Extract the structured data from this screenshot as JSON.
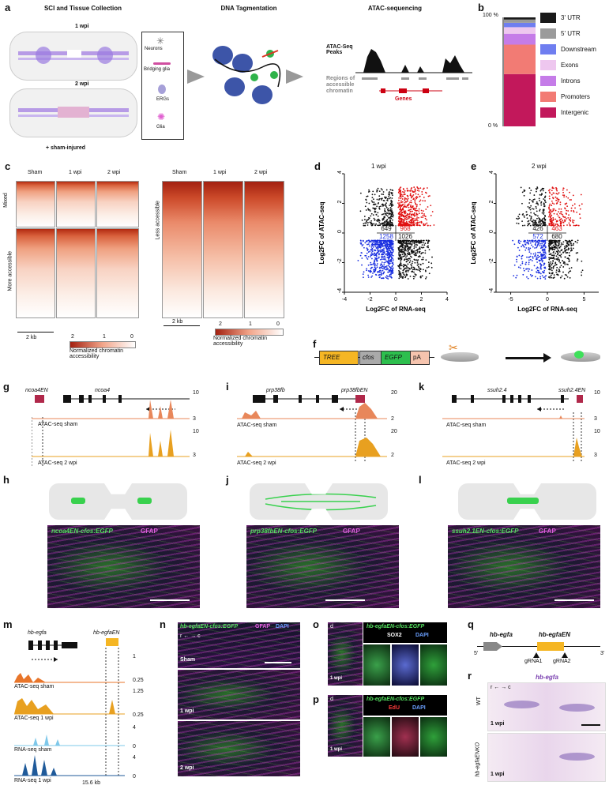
{
  "panels": {
    "a": {
      "label": "a",
      "title_sci": "SCI and Tissue Collection",
      "title_dna": "DNA Tagmentation",
      "title_atac": "ATAC-sequencing",
      "wpi1": "1 wpi",
      "wpi2": "2 wpi",
      "sham": "+ sham-injured",
      "legend": [
        "Neurons",
        "Bridging glia",
        "ERGs",
        "Glia"
      ],
      "atac_peaks": "ATAC-Seq Peaks",
      "regions": "Regions of accessible chromatin",
      "genes": "Genes"
    },
    "b": {
      "label": "b",
      "y_top": "100 %",
      "y_bottom": "0 %"
    },
    "c": {
      "label": "c",
      "cols": [
        "Sham",
        "1 wpi",
        "2 wpi"
      ],
      "row_mixed": "Mixed",
      "row_more": "More accessible",
      "row_less": "Less accessible",
      "scale": "2 kb",
      "cb_ticks": [
        "2",
        "1",
        "0"
      ],
      "cb_label": "Normalized chromatin accessibility"
    },
    "d": {
      "label": "d",
      "title": "1 wpi",
      "xlabel": "Log2FC of RNA-seq",
      "ylabel": "Log2FC of ATAC-seq",
      "counts": [
        "649",
        "968",
        "1258",
        "1026"
      ]
    },
    "e": {
      "label": "e",
      "title": "2 wpi",
      "xlabel": "Log2FC of RNA-seq",
      "ylabel": "Log2FC of ATAC-seq",
      "counts": [
        "426",
        "463",
        "572",
        "680"
      ]
    },
    "f": {
      "label": "f",
      "parts": [
        "TREE",
        "cfos",
        "EGFP",
        "pA"
      ]
    },
    "g": {
      "label": "g",
      "gene_en": "ncoa4EN",
      "gene": "ncoa4",
      "track1": "ATAC-seq sham",
      "track2": "ATAC-seq 2 wpi",
      "max1": "10",
      "min1": "3",
      "max2": "10",
      "min2": "3"
    },
    "i": {
      "label": "i",
      "gene_en": "prp38fbEN",
      "gene": "prp38fb",
      "track1": "ATAC-seq sham",
      "track2": "ATAC-seq 2 wpi",
      "max1": "20",
      "min1": "2",
      "max2": "20",
      "min2": "2"
    },
    "k": {
      "label": "k",
      "gene_en": "ssuh2.4EN",
      "gene": "ssuh2.4",
      "track1": "ATAC-seq sham",
      "track2": "ATAC-seq 2 wpi",
      "max1": "10",
      "min1": "3",
      "max2": "10",
      "min2": "3"
    },
    "h": {
      "label": "h",
      "stain": "ncoa4EN-cfos:EGFP",
      "gfap": "GFAP"
    },
    "j": {
      "label": "j",
      "stain": "prp38fbEN-cfos:EGFP",
      "gfap": "GFAP"
    },
    "l": {
      "label": "l",
      "stain": "ssuh2.1EN-cfos:EGFP",
      "gfap": "GFAP"
    },
    "m": {
      "label": "m",
      "gene": "hb-egfa",
      "gene_en": "hb-egfaEN",
      "tracks": [
        "ATAC-seq sham",
        "ATAC-seq 1 wpi",
        "RNA-seq sham",
        "RNA-seq 1 wpi"
      ],
      "scales": [
        [
          "1",
          "0.25"
        ],
        [
          "1.25",
          "0.25"
        ],
        [
          "4",
          "0"
        ],
        [
          "4",
          "0"
        ]
      ],
      "dist": "15.6 kb"
    },
    "n": {
      "label": "n",
      "stain": "hb-egfaEN-cfos:EGFP",
      "gfap": "GFAP",
      "dapi": "DAPI",
      "axis": "r ← → c",
      "rows": [
        "Sham",
        "1 wpi",
        "2 wpi"
      ]
    },
    "o": {
      "label": "o",
      "stain": "hb-egfaEN-cfos:EGFP",
      "sox2": "SOX2",
      "dapi": "DAPI",
      "time": "1 wpi",
      "axis": "d"
    },
    "p": {
      "label": "p",
      "stain": "hb-egfaEN-cfos:EGFP",
      "edu": "EdU",
      "dapi": "DAPI",
      "time": "1 wpi",
      "axis": "d"
    },
    "q": {
      "label": "q",
      "gene": "hb-egfa",
      "gene_en": "hb-egfaEN",
      "five": "5'",
      "three": "3'",
      "g1": "gRNA1",
      "g2": "gRNA2"
    },
    "r": {
      "label": "r",
      "title": "hb-egfa",
      "axis": "r ← → c",
      "rows": [
        "WT",
        "hb-egfaENKO"
      ],
      "time": "1 wpi"
    }
  },
  "legend_b": [
    {
      "label": "3' UTR",
      "color": "#1a1a1a"
    },
    {
      "label": "5' UTR",
      "color": "#9b9b9b"
    },
    {
      "label": "Downstream",
      "color": "#6f7ef0"
    },
    {
      "label": "Exons",
      "color": "#eec7ef"
    },
    {
      "label": "Introns",
      "color": "#c57ce8"
    },
    {
      "label": "Promoters",
      "color": "#f27b74"
    },
    {
      "label": "Intergenic",
      "color": "#c2185b"
    }
  ],
  "chart_data": [
    {
      "type": "bar",
      "title": "",
      "categories": [
        ""
      ],
      "series": [
        {
          "name": "Intergenic",
          "values": [
            48
          ]
        },
        {
          "name": "Promoters",
          "values": [
            27
          ]
        },
        {
          "name": "Introns",
          "values": [
            10
          ]
        },
        {
          "name": "Exons",
          "values": [
            6
          ]
        },
        {
          "name": "Downstream",
          "values": [
            4
          ]
        },
        {
          "name": "5' UTR",
          "values": [
            3
          ]
        },
        {
          "name": "3' UTR",
          "values": [
            2
          ]
        }
      ],
      "ylim": [
        0,
        100
      ]
    },
    {
      "type": "scatter",
      "title": "1 wpi",
      "xlabel": "Log2FC of RNA-seq",
      "ylabel": "Log2FC of ATAC-seq",
      "xlim": [
        -4,
        4
      ],
      "ylim": [
        -4,
        4
      ],
      "quadrant_counts": {
        "upper_left": 649,
        "upper_right": 968,
        "lower_left": 1258,
        "lower_right": 1026
      }
    },
    {
      "type": "scatter",
      "title": "2 wpi",
      "xlabel": "Log2FC of RNA-seq",
      "ylabel": "Log2FC of ATAC-seq",
      "xlim": [
        -7,
        7
      ],
      "ylim": [
        -4,
        4
      ],
      "quadrant_counts": {
        "upper_left": 426,
        "upper_right": 463,
        "lower_left": 572,
        "lower_right": 680
      }
    }
  ]
}
